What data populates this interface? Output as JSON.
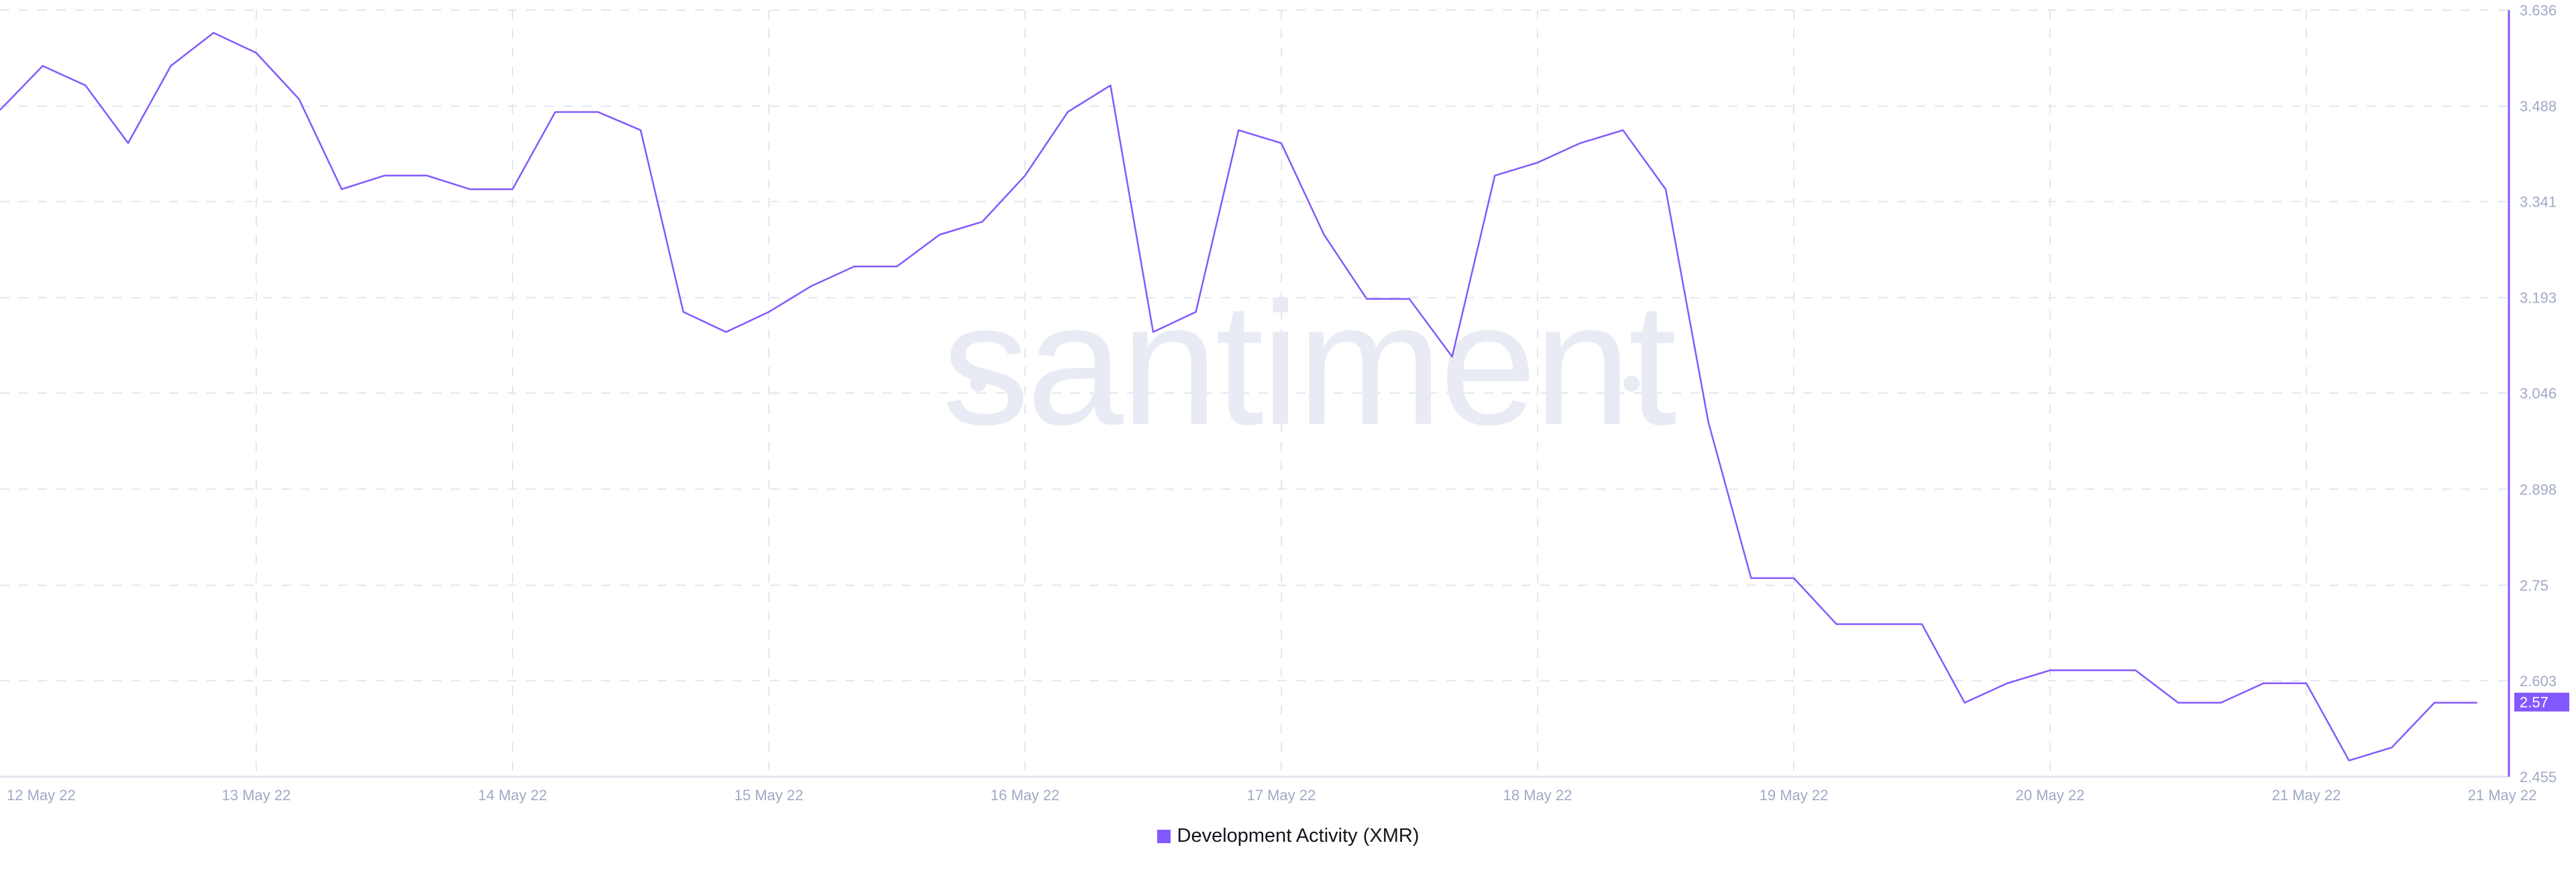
{
  "chart_data": {
    "type": "line",
    "title": "",
    "xlabel": "",
    "ylabel": "",
    "watermark": "santiment",
    "grid": true,
    "legend_position": "bottom",
    "ylim": [
      2.455,
      3.636
    ],
    "y_ticks": [
      "3.636",
      "3.488",
      "3.341",
      "3.193",
      "3.046",
      "2.898",
      "2.75",
      "2.603",
      "2.455"
    ],
    "x_ticks": [
      "12 May 22",
      "13 May 22",
      "14 May 22",
      "15 May 22",
      "16 May 22",
      "17 May 22",
      "18 May 22",
      "19 May 22",
      "20 May 22",
      "21 May 22",
      "21 May 22"
    ],
    "last_value_label": "2.57",
    "colors": {
      "line": "#8358ff",
      "axis_text": "#9faac4",
      "grid": "#e3e6ee",
      "watermark": "#e8ebf3"
    },
    "series": [
      {
        "name": "Development Activity (XMR)",
        "x": [
          "12 May 00:00",
          "12 May 04:00",
          "12 May 08:00",
          "12 May 12:00",
          "12 May 16:00",
          "12 May 20:00",
          "13 May 00:00",
          "13 May 04:00",
          "13 May 08:00",
          "13 May 12:00",
          "13 May 16:00",
          "13 May 20:00",
          "14 May 00:00",
          "14 May 04:00",
          "14 May 08:00",
          "14 May 12:00",
          "14 May 16:00",
          "14 May 20:00",
          "15 May 00:00",
          "15 May 04:00",
          "15 May 08:00",
          "15 May 12:00",
          "15 May 16:00",
          "15 May 20:00",
          "16 May 00:00",
          "16 May 04:00",
          "16 May 08:00",
          "16 May 12:00",
          "16 May 16:00",
          "16 May 20:00",
          "17 May 00:00",
          "17 May 04:00",
          "17 May 08:00",
          "17 May 12:00",
          "17 May 16:00",
          "17 May 20:00",
          "18 May 00:00",
          "18 May 04:00",
          "18 May 08:00",
          "18 May 12:00",
          "18 May 16:00",
          "18 May 20:00",
          "19 May 00:00",
          "19 May 04:00",
          "19 May 08:00",
          "19 May 12:00",
          "19 May 16:00",
          "19 May 20:00",
          "20 May 00:00",
          "20 May 04:00",
          "20 May 08:00",
          "20 May 12:00",
          "20 May 16:00",
          "20 May 20:00",
          "21 May 00:00",
          "21 May 04:00",
          "21 May 08:00",
          "21 May 12:00",
          "21 May 16:00"
        ],
        "values": [
          3.482,
          3.55,
          3.52,
          3.431,
          3.55,
          3.601,
          3.57,
          3.499,
          3.36,
          3.381,
          3.381,
          3.36,
          3.36,
          3.479,
          3.479,
          3.451,
          3.171,
          3.14,
          3.171,
          3.211,
          3.241,
          3.241,
          3.29,
          3.31,
          3.381,
          3.479,
          3.52,
          3.14,
          3.171,
          3.451,
          3.431,
          3.29,
          3.191,
          3.191,
          3.102,
          3.381,
          3.401,
          3.431,
          3.451,
          3.36,
          3.001,
          2.761,
          2.761,
          2.69,
          2.69,
          2.69,
          2.569,
          2.599,
          2.619,
          2.619,
          2.619,
          2.569,
          2.569,
          2.599,
          2.599,
          2.48,
          2.5,
          2.569,
          2.569
        ]
      }
    ]
  },
  "legend": {
    "label": "Development Activity (XMR)"
  }
}
